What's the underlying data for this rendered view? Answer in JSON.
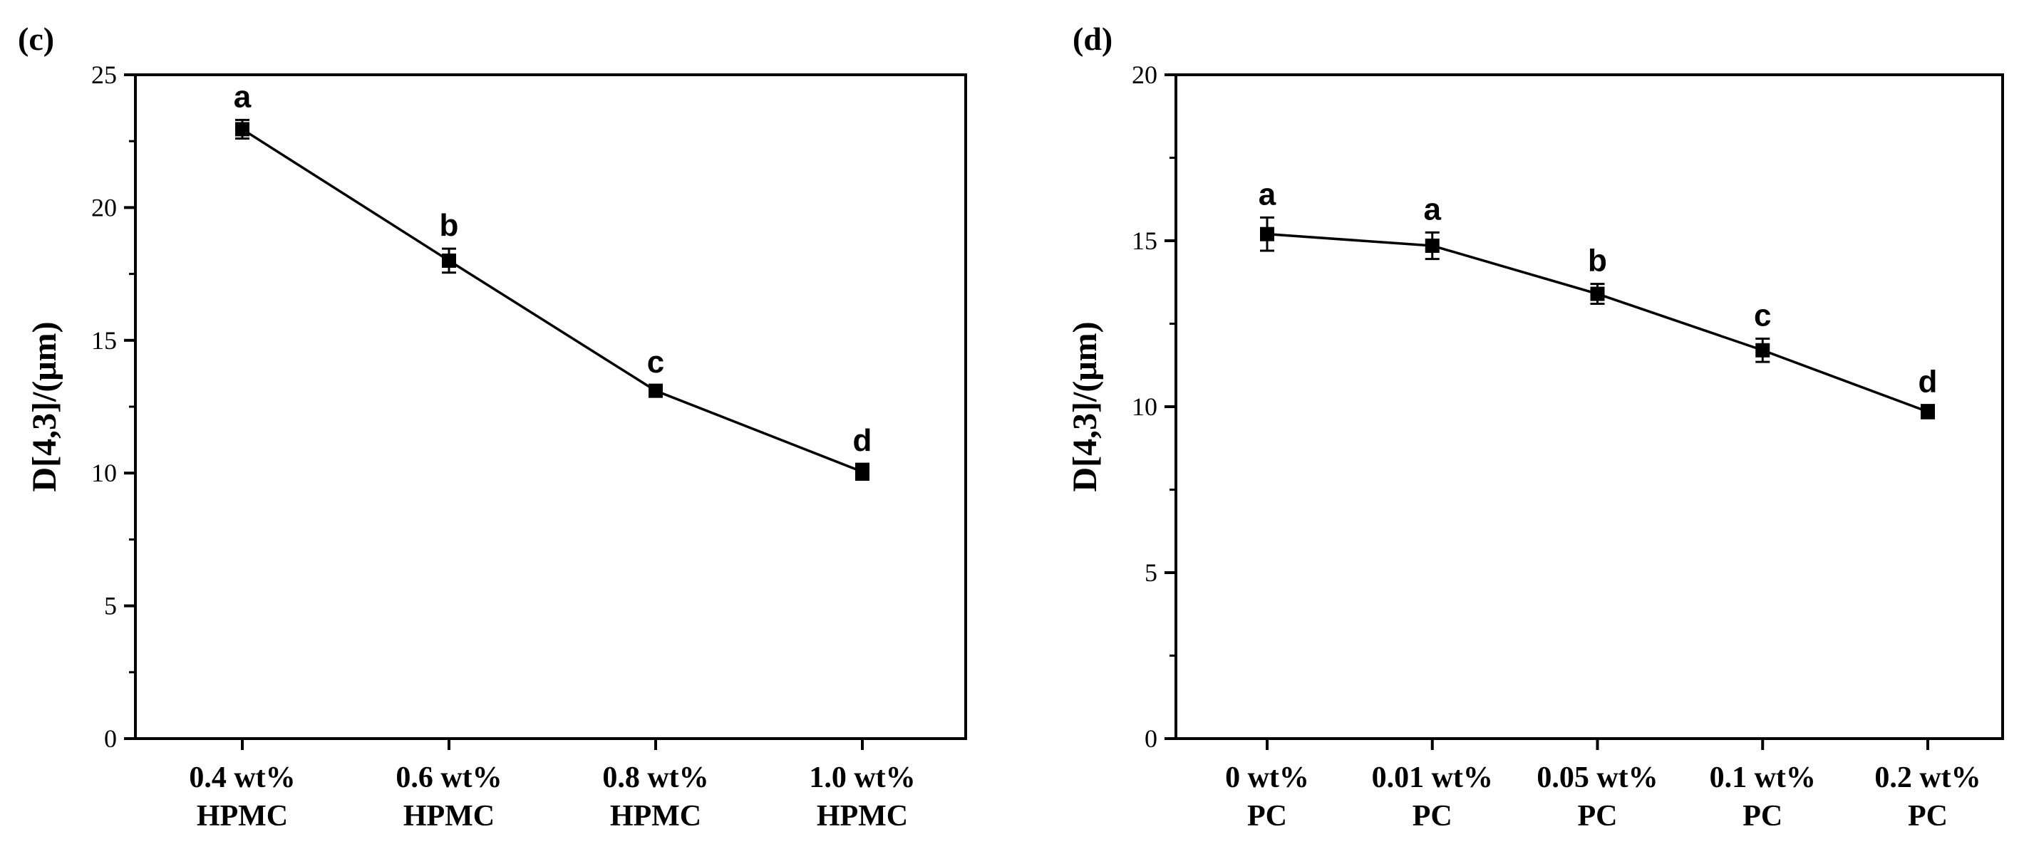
{
  "chart_data": [
    {
      "type": "line",
      "panel_label": "(c)",
      "title": "",
      "xlabel": "",
      "ylabel": "D[4,3]/(μm)",
      "ylim": [
        0,
        25
      ],
      "yticks": [
        0,
        5,
        10,
        15,
        20,
        25
      ],
      "categories": [
        {
          "line1": "0.4 wt%",
          "line2": "HPMC"
        },
        {
          "line1": "0.6 wt%",
          "line2": "HPMC"
        },
        {
          "line1": "0.8 wt%",
          "line2": "HPMC"
        },
        {
          "line1": "1.0 wt%",
          "line2": "HPMC"
        }
      ],
      "series": [
        {
          "name": "D[4,3]",
          "values": [
            22.95,
            18.0,
            13.1,
            10.05
          ],
          "errors": [
            0.35,
            0.45,
            0.2,
            0.3
          ],
          "labels": [
            "a",
            "b",
            "c",
            "d"
          ]
        }
      ]
    },
    {
      "type": "line",
      "panel_label": "(d)",
      "title": "",
      "xlabel": "",
      "ylabel": "D[4,3]/(μm)",
      "ylim": [
        0,
        20
      ],
      "yticks": [
        0,
        5,
        10,
        15,
        20
      ],
      "categories": [
        {
          "line1": "0 wt%",
          "line2": "PC"
        },
        {
          "line1": "0.01 wt%",
          "line2": "PC"
        },
        {
          "line1": "0.05 wt%",
          "line2": "PC"
        },
        {
          "line1": "0.1 wt%",
          "line2": "PC"
        },
        {
          "line1": "0.2 wt%",
          "line2": "PC"
        }
      ],
      "series": [
        {
          "name": "D[4,3]",
          "values": [
            15.2,
            14.85,
            13.4,
            11.7,
            9.85
          ],
          "errors": [
            0.5,
            0.4,
            0.3,
            0.35,
            0.2
          ],
          "labels": [
            "a",
            "a",
            "b",
            "c",
            "d"
          ]
        }
      ]
    }
  ]
}
